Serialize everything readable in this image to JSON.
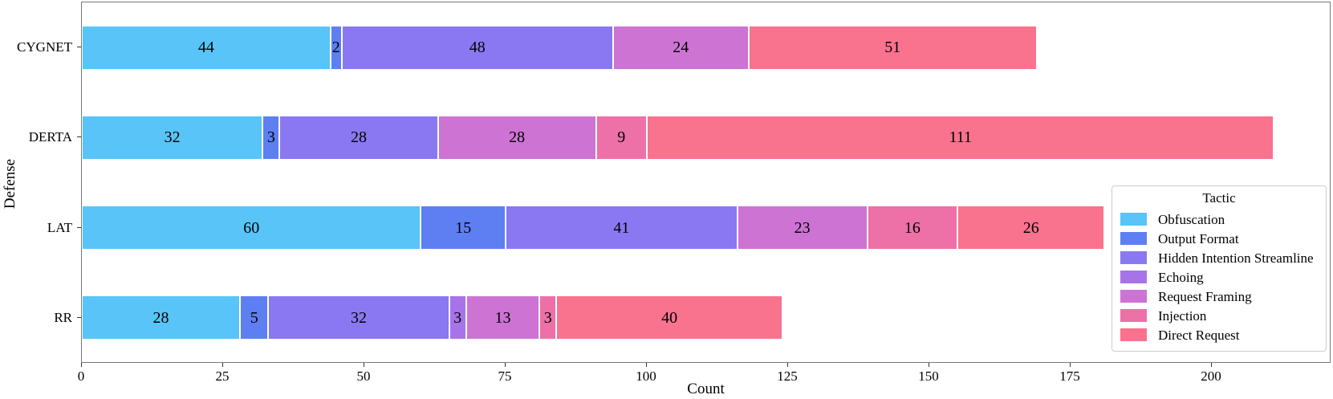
{
  "axes": {
    "xlabel": "Count",
    "ylabel": "Defense"
  },
  "legend": {
    "title": "Tactic"
  },
  "chart_data": {
    "type": "bar",
    "orientation": "horizontal",
    "stacked": true,
    "categories": [
      "CYGNET",
      "DERTA",
      "LAT",
      "RR"
    ],
    "series": [
      {
        "name": "Obfuscation",
        "color": "#58c4f7",
        "values": [
          44,
          32,
          60,
          28
        ]
      },
      {
        "name": "Output Format",
        "color": "#5d7ff2",
        "values": [
          2,
          3,
          15,
          5
        ]
      },
      {
        "name": "Hidden Intention Streamline",
        "color": "#8a78f2",
        "values": [
          48,
          28,
          41,
          32
        ]
      },
      {
        "name": "Echoing",
        "color": "#a673e8",
        "values": [
          0,
          0,
          0,
          3
        ]
      },
      {
        "name": "Request Framing",
        "color": "#cd73d3",
        "values": [
          24,
          28,
          23,
          13
        ]
      },
      {
        "name": "Injection",
        "color": "#ed70a7",
        "values": [
          0,
          9,
          16,
          3
        ]
      },
      {
        "name": "Direct Request",
        "color": "#f9728e",
        "values": [
          51,
          111,
          26,
          40
        ]
      }
    ],
    "totals": [
      169,
      211,
      181,
      124
    ],
    "xlabel": "Count",
    "ylabel": "Defense",
    "xticks": [
      0,
      25,
      50,
      75,
      100,
      125,
      150,
      175,
      200
    ],
    "xlim": [
      0,
      221.3
    ],
    "grid": false,
    "legend_title": "Tactic",
    "legend_position": "lower right inside axes",
    "bar_value_labels": true
  }
}
